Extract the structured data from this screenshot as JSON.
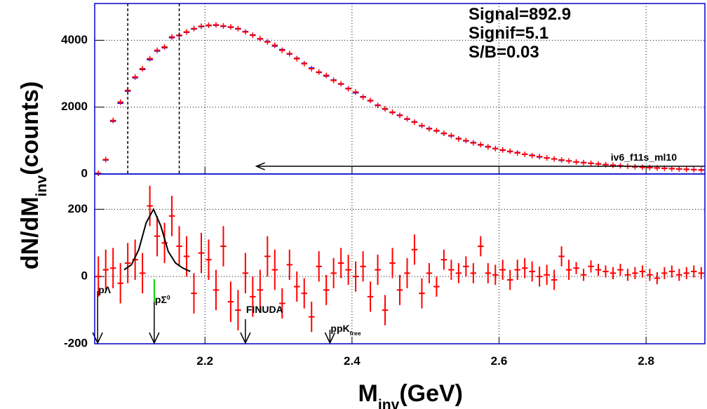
{
  "chart_data": [
    {
      "type": "errorbar",
      "x": [
        2.055,
        2.065,
        2.075,
        2.085,
        2.095,
        2.105,
        2.115,
        2.125,
        2.135,
        2.145,
        2.155,
        2.165,
        2.175,
        2.185,
        2.195,
        2.205,
        2.215,
        2.225,
        2.235,
        2.245,
        2.255,
        2.265,
        2.275,
        2.285,
        2.295,
        2.305,
        2.315,
        2.325,
        2.335,
        2.345,
        2.355,
        2.365,
        2.375,
        2.385,
        2.395,
        2.405,
        2.415,
        2.425,
        2.435,
        2.445,
        2.455,
        2.465,
        2.475,
        2.485,
        2.495,
        2.505,
        2.515,
        2.525,
        2.535,
        2.545,
        2.555,
        2.565,
        2.575,
        2.585,
        2.595,
        2.605,
        2.615,
        2.625,
        2.635,
        2.645,
        2.655,
        2.665,
        2.675,
        2.685,
        2.695,
        2.705,
        2.715,
        2.725,
        2.735,
        2.745,
        2.755,
        2.765,
        2.775,
        2.785,
        2.795,
        2.805,
        2.815,
        2.825,
        2.835,
        2.845,
        2.855,
        2.865,
        2.875
      ],
      "series": [
        {
          "color": "#0000ff",
          "values": [
            10,
            420,
            1580,
            2120,
            2480,
            2880,
            3130,
            3420,
            3680,
            3780,
            4080,
            4140,
            4240,
            4340,
            4410,
            4440,
            4450,
            4420,
            4390,
            4340,
            4260,
            4160,
            4040,
            3960,
            3830,
            3720,
            3590,
            3460,
            3310,
            3170,
            3040,
            2930,
            2810,
            2690,
            2560,
            2430,
            2310,
            2190,
            2060,
            1940,
            1840,
            1760,
            1640,
            1560,
            1440,
            1360,
            1290,
            1210,
            1140,
            1060,
            990,
            940,
            870,
            820,
            760,
            710,
            670,
            640,
            590,
            560,
            510,
            480,
            450,
            410,
            390,
            360,
            340,
            320,
            300,
            280,
            265,
            245,
            230,
            215,
            200,
            190,
            180,
            170,
            160,
            150,
            140,
            130,
            120
          ]
        },
        {
          "color": "#ff0000",
          "values": [
            20,
            430,
            1600,
            2150,
            2500,
            2900,
            3150,
            3450,
            3700,
            3800,
            4100,
            4150,
            4250,
            4350,
            4420,
            4450,
            4460,
            4430,
            4400,
            4350,
            4250,
            4150,
            4050,
            3950,
            3850,
            3700,
            3600,
            3450,
            3300,
            3150,
            3050,
            2950,
            2800,
            2700,
            2550,
            2450,
            2300,
            2200,
            2050,
            1950,
            1850,
            1750,
            1650,
            1550,
            1450,
            1350,
            1300,
            1220,
            1150,
            1050,
            1000,
            930,
            880,
            810,
            760,
            720,
            680,
            630,
            590,
            550,
            520,
            480,
            450,
            420,
            390,
            360,
            340,
            320,
            300,
            280,
            260,
            245,
            230,
            215,
            200,
            190,
            180,
            170,
            160,
            150,
            140,
            130,
            120
          ]
        }
      ],
      "xlim": [
        2.05,
        2.88
      ],
      "xticks": [
        2.2,
        2.4,
        2.6,
        2.8
      ],
      "ylim": [
        0,
        5100
      ],
      "yticks": [
        0,
        2000,
        4000
      ],
      "grid": true,
      "stats": [
        "Signal=892.9",
        "Signif=5.1",
        "S/B=0.03"
      ],
      "vlines": [
        2.095,
        2.165
      ],
      "arrow": {
        "from": 2.88,
        "to": 2.27,
        "y": 230,
        "label": "iv6_f11s_ml10"
      }
    },
    {
      "type": "errorbar",
      "x": [
        2.055,
        2.065,
        2.075,
        2.085,
        2.095,
        2.105,
        2.115,
        2.125,
        2.135,
        2.145,
        2.155,
        2.165,
        2.175,
        2.185,
        2.195,
        2.205,
        2.215,
        2.225,
        2.235,
        2.245,
        2.255,
        2.265,
        2.275,
        2.285,
        2.295,
        2.305,
        2.315,
        2.325,
        2.335,
        2.345,
        2.355,
        2.365,
        2.375,
        2.385,
        2.395,
        2.405,
        2.415,
        2.425,
        2.435,
        2.445,
        2.455,
        2.465,
        2.475,
        2.485,
        2.495,
        2.505,
        2.515,
        2.525,
        2.535,
        2.545,
        2.555,
        2.565,
        2.575,
        2.585,
        2.595,
        2.605,
        2.615,
        2.625,
        2.635,
        2.645,
        2.655,
        2.665,
        2.675,
        2.685,
        2.695,
        2.705,
        2.715,
        2.725,
        2.735,
        2.745,
        2.755,
        2.765,
        2.775,
        2.785,
        2.795,
        2.805,
        2.815,
        2.825,
        2.835,
        2.845,
        2.855,
        2.865,
        2.875
      ],
      "values": [
        0,
        20,
        25,
        -20,
        40,
        50,
        10,
        210,
        120,
        100,
        180,
        90,
        60,
        -50,
        70,
        50,
        -40,
        90,
        -75,
        -100,
        10,
        -60,
        -40,
        60,
        20,
        -80,
        35,
        -30,
        -50,
        -120,
        30,
        -40,
        10,
        40,
        20,
        0,
        30,
        -60,
        20,
        -100,
        40,
        -40,
        10,
        80,
        -50,
        10,
        -30,
        50,
        20,
        10,
        30,
        10,
        90,
        10,
        5,
        20,
        -10,
        20,
        25,
        15,
        0,
        5,
        -10,
        60,
        20,
        25,
        5,
        30,
        20,
        15,
        10,
        20,
        5,
        10,
        15,
        5,
        -5,
        10,
        15,
        5,
        10,
        15,
        10
      ],
      "errors": [
        60,
        60,
        60,
        60,
        60,
        60,
        60,
        60,
        60,
        60,
        60,
        60,
        60,
        60,
        60,
        60,
        60,
        60,
        60,
        60,
        60,
        60,
        60,
        60,
        60,
        45,
        45,
        45,
        45,
        45,
        45,
        45,
        45,
        45,
        45,
        45,
        45,
        45,
        45,
        45,
        45,
        45,
        45,
        45,
        45,
        30,
        30,
        30,
        30,
        30,
        30,
        30,
        30,
        30,
        30,
        30,
        30,
        30,
        30,
        30,
        30,
        30,
        30,
        30,
        30,
        18,
        18,
        18,
        18,
        18,
        18,
        18,
        18,
        18,
        18,
        18,
        18,
        18,
        18,
        18,
        18,
        18,
        18
      ],
      "color": "#ff0000",
      "fit": {
        "x": [
          2.09,
          2.1,
          2.11,
          2.12,
          2.13,
          2.14,
          2.15,
          2.16,
          2.17,
          2.18
        ],
        "values": [
          20,
          35,
          80,
          160,
          200,
          150,
          75,
          40,
          25,
          15
        ]
      },
      "markers": [
        {
          "x": 2.054,
          "text": "pΛ"
        },
        {
          "x": 2.131,
          "text": "pΣ",
          "sup": "0"
        },
        {
          "x": 2.255,
          "text": "FINUDA"
        },
        {
          "x": 2.37,
          "text": "ppK",
          "sub": "free"
        }
      ],
      "xlim": [
        2.05,
        2.88
      ],
      "xticks": [
        2.2,
        2.4,
        2.6,
        2.8
      ],
      "ylim": [
        -200,
        305
      ],
      "yticks": [
        -200,
        0,
        200
      ],
      "grid": true,
      "xlabel": {
        "text": "M",
        "sub": "inv",
        "after": "(GeV)"
      }
    }
  ],
  "ylabel": {
    "text": "dN/dM",
    "sub": "inv",
    "after": "(counts)"
  }
}
